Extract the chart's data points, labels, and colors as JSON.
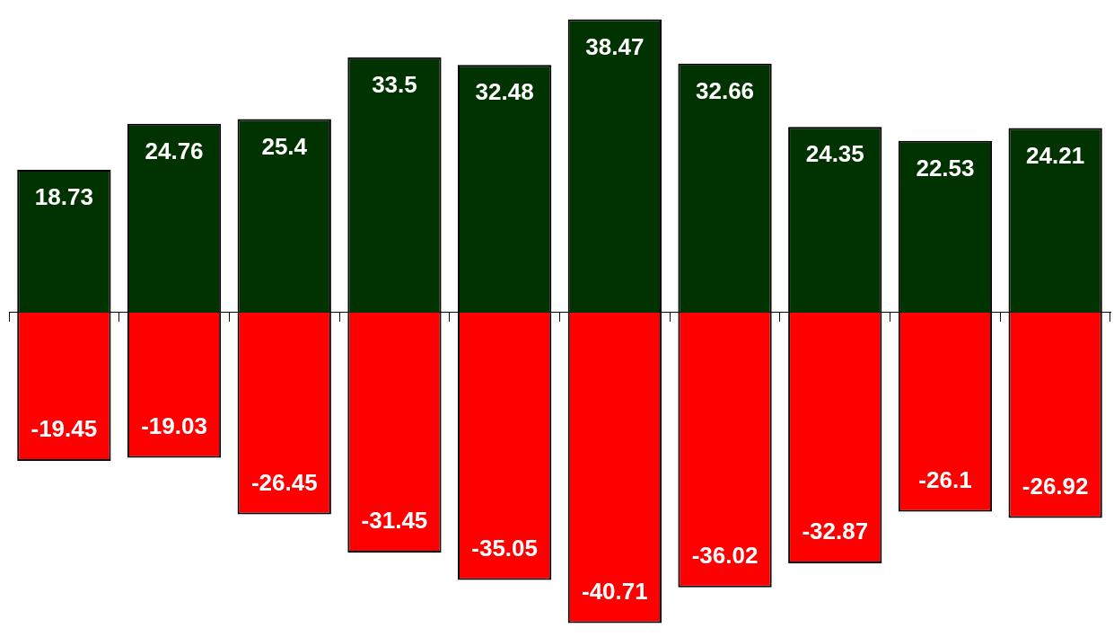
{
  "chart_data": {
    "type": "bar",
    "categories": [
      null,
      null,
      null,
      null,
      null,
      null,
      null,
      null,
      null,
      null
    ],
    "stacked": true,
    "data_labels": true,
    "grid": false,
    "legend": false,
    "series": [
      {
        "color": "#003300",
        "values": [
          18.73,
          24.76,
          25.4,
          33.5,
          32.48,
          38.47,
          32.66,
          24.35,
          22.53,
          24.21
        ]
      },
      {
        "color": "#ff0000",
        "values": [
          -19.45,
          -19.03,
          -26.45,
          -31.45,
          -35.05,
          -40.71,
          -36.02,
          -32.87,
          -26.1,
          -26.92
        ]
      }
    ]
  }
}
